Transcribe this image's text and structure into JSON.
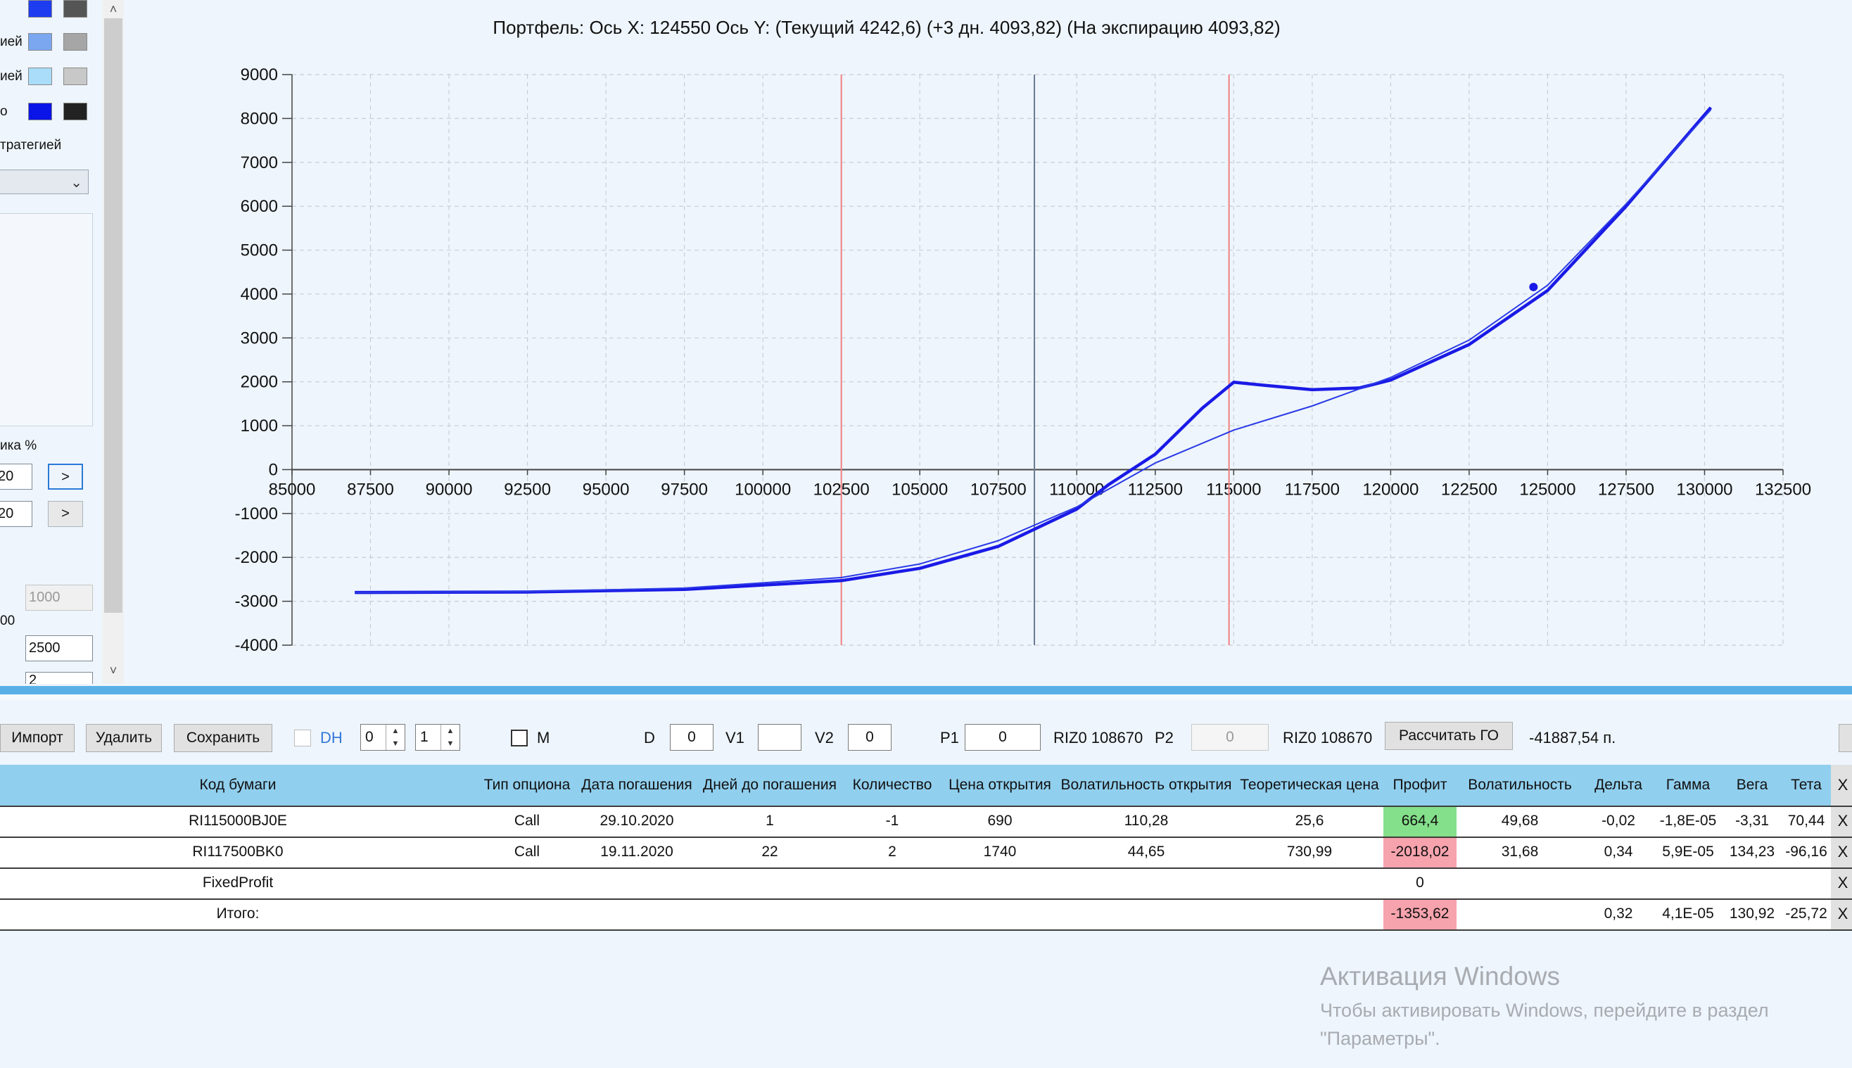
{
  "left_panel": {
    "rows": [
      {
        "label": "",
        "color_a": "#1e3cf0",
        "color_b": "#555555"
      },
      {
        "label": "ией",
        "color_a": "#7aa7f0",
        "color_b": "#a6a6a6"
      },
      {
        "label": "ией",
        "color_a": "#a9ddf9",
        "color_b": "#c8c8c8"
      },
      {
        "label": "о",
        "color_a": "#0a14e6",
        "color_b": "#222222"
      }
    ],
    "strategy_label": "тратегией",
    "step_label": "ика %",
    "step_values": [
      "20",
      "20"
    ],
    "step_button": ">",
    "input_disabled_value": "1000",
    "input_side_label": "00",
    "input_value": "2500",
    "input_partial_value": "2"
  },
  "chart": {
    "title": "Портфель: Ось X: 124550 Ось Y:  (Текущий 4242,6)  (+3 дн. 4093,82)  (На экспирацию 4093,82)"
  },
  "chart_data": {
    "type": "line",
    "title": "Портфель: Ось X: 124550 Ось Y:  (Текущий 4242,6)  (+3 дн. 4093,82)  (На экспирацию 4093,82)",
    "xlabel": "",
    "ylabel": "",
    "xlim": [
      85000,
      132500
    ],
    "ylim": [
      -4000,
      9000
    ],
    "x_ticks": [
      85000,
      87500,
      90000,
      92500,
      95000,
      97500,
      100000,
      102500,
      105000,
      107500,
      110000,
      112500,
      115000,
      117500,
      120000,
      122500,
      125000,
      127500,
      130000,
      132500
    ],
    "y_ticks": [
      -4000,
      -3000,
      -2000,
      -1000,
      0,
      1000,
      2000,
      3000,
      4000,
      5000,
      6000,
      7000,
      8000,
      9000
    ],
    "grid": true,
    "vertical_markers": [
      {
        "x": 102500,
        "color": "#f08080"
      },
      {
        "x": 108650,
        "color": "#6a7a90"
      },
      {
        "x": 114850,
        "color": "#f08080"
      }
    ],
    "series": [
      {
        "color": "#1a1ae6",
        "width": "thick",
        "x": [
          87000,
          92500,
          97500,
          102500,
          105000,
          107500,
          110000,
          111000,
          112500,
          114000,
          115000,
          116000,
          117500,
          119000,
          120000,
          122500,
          125000,
          127500,
          130200
        ],
        "y": [
          -2800,
          -2790,
          -2730,
          -2530,
          -2250,
          -1750,
          -900,
          -350,
          350,
          1400,
          1990,
          1920,
          1820,
          1860,
          2040,
          2850,
          4080,
          6000,
          8250
        ]
      },
      {
        "color": "#2a3ae6",
        "width": "thin",
        "x": [
          87000,
          92500,
          97500,
          102500,
          105000,
          107500,
          110000,
          112500,
          115000,
          117500,
          120000,
          122500,
          125000,
          127500,
          130200
        ],
        "y": [
          -2800,
          -2780,
          -2700,
          -2460,
          -2150,
          -1620,
          -850,
          150,
          900,
          1450,
          2100,
          2950,
          4200,
          6050,
          8200
        ]
      }
    ],
    "cursor_point": {
      "x": 124550,
      "y": 4160
    }
  },
  "toolbar": {
    "import": "Импорт",
    "delete": "Удалить",
    "save": "Сохранить",
    "dh": "DH",
    "spin1": "0",
    "spin2": "1",
    "m": "M",
    "d_label": "D",
    "d_value": "0",
    "v1_label": "V1",
    "v1_value": "",
    "v2_label": "V2",
    "v2_value": "0",
    "p1_label": "P1",
    "p1_value": "0",
    "riz1": "RIZ0 108670",
    "p2_label": "P2",
    "p2_value": "0",
    "riz2": "RIZ0 108670",
    "calc_go": "Рассчитать ГО",
    "go_value": "-41887,54 п."
  },
  "table": {
    "headers": [
      "Код бумаги",
      "Тип опциона",
      "Дата погашения",
      "Дней до погашения",
      "Количество",
      "Цена открытия",
      "Волатильность открытия",
      "Теоретическая цена",
      "Профит",
      "Волатильность",
      "Дельта",
      "Гамма",
      "Вега",
      "Тета",
      "X"
    ],
    "rows": [
      {
        "cells": [
          "RI115000BJ0E",
          "Call",
          "29.10.2020",
          "1",
          "-1",
          "690",
          "110,28",
          "25,6",
          "664,4",
          "49,68",
          "-0,02",
          "-1,8E-05",
          "-3,31",
          "70,44",
          "X"
        ],
        "profit_status": "green"
      },
      {
        "cells": [
          "RI117500BK0",
          "Call",
          "19.11.2020",
          "22",
          "2",
          "1740",
          "44,65",
          "730,99",
          "-2018,02",
          "31,68",
          "0,34",
          "5,9E-05",
          "134,23",
          "-96,16",
          "X"
        ],
        "profit_status": "red"
      },
      {
        "cells": [
          "FixedProfit",
          "",
          "",
          "",
          "",
          "",
          "",
          "",
          "0",
          "",
          "",
          "",
          "",
          "",
          "X"
        ],
        "profit_status": "none"
      },
      {
        "cells": [
          "Итого:",
          "",
          "",
          "",
          "",
          "",
          "",
          "",
          "-1353,62",
          "",
          "0,32",
          "4,1E-05",
          "130,92",
          "-25,72",
          "X"
        ],
        "profit_status": "red"
      }
    ]
  },
  "watermark": {
    "title": "Активация Windows",
    "line1": "Чтобы активировать Windows, перейдите в раздел",
    "line2": "\"Параметры\"."
  }
}
